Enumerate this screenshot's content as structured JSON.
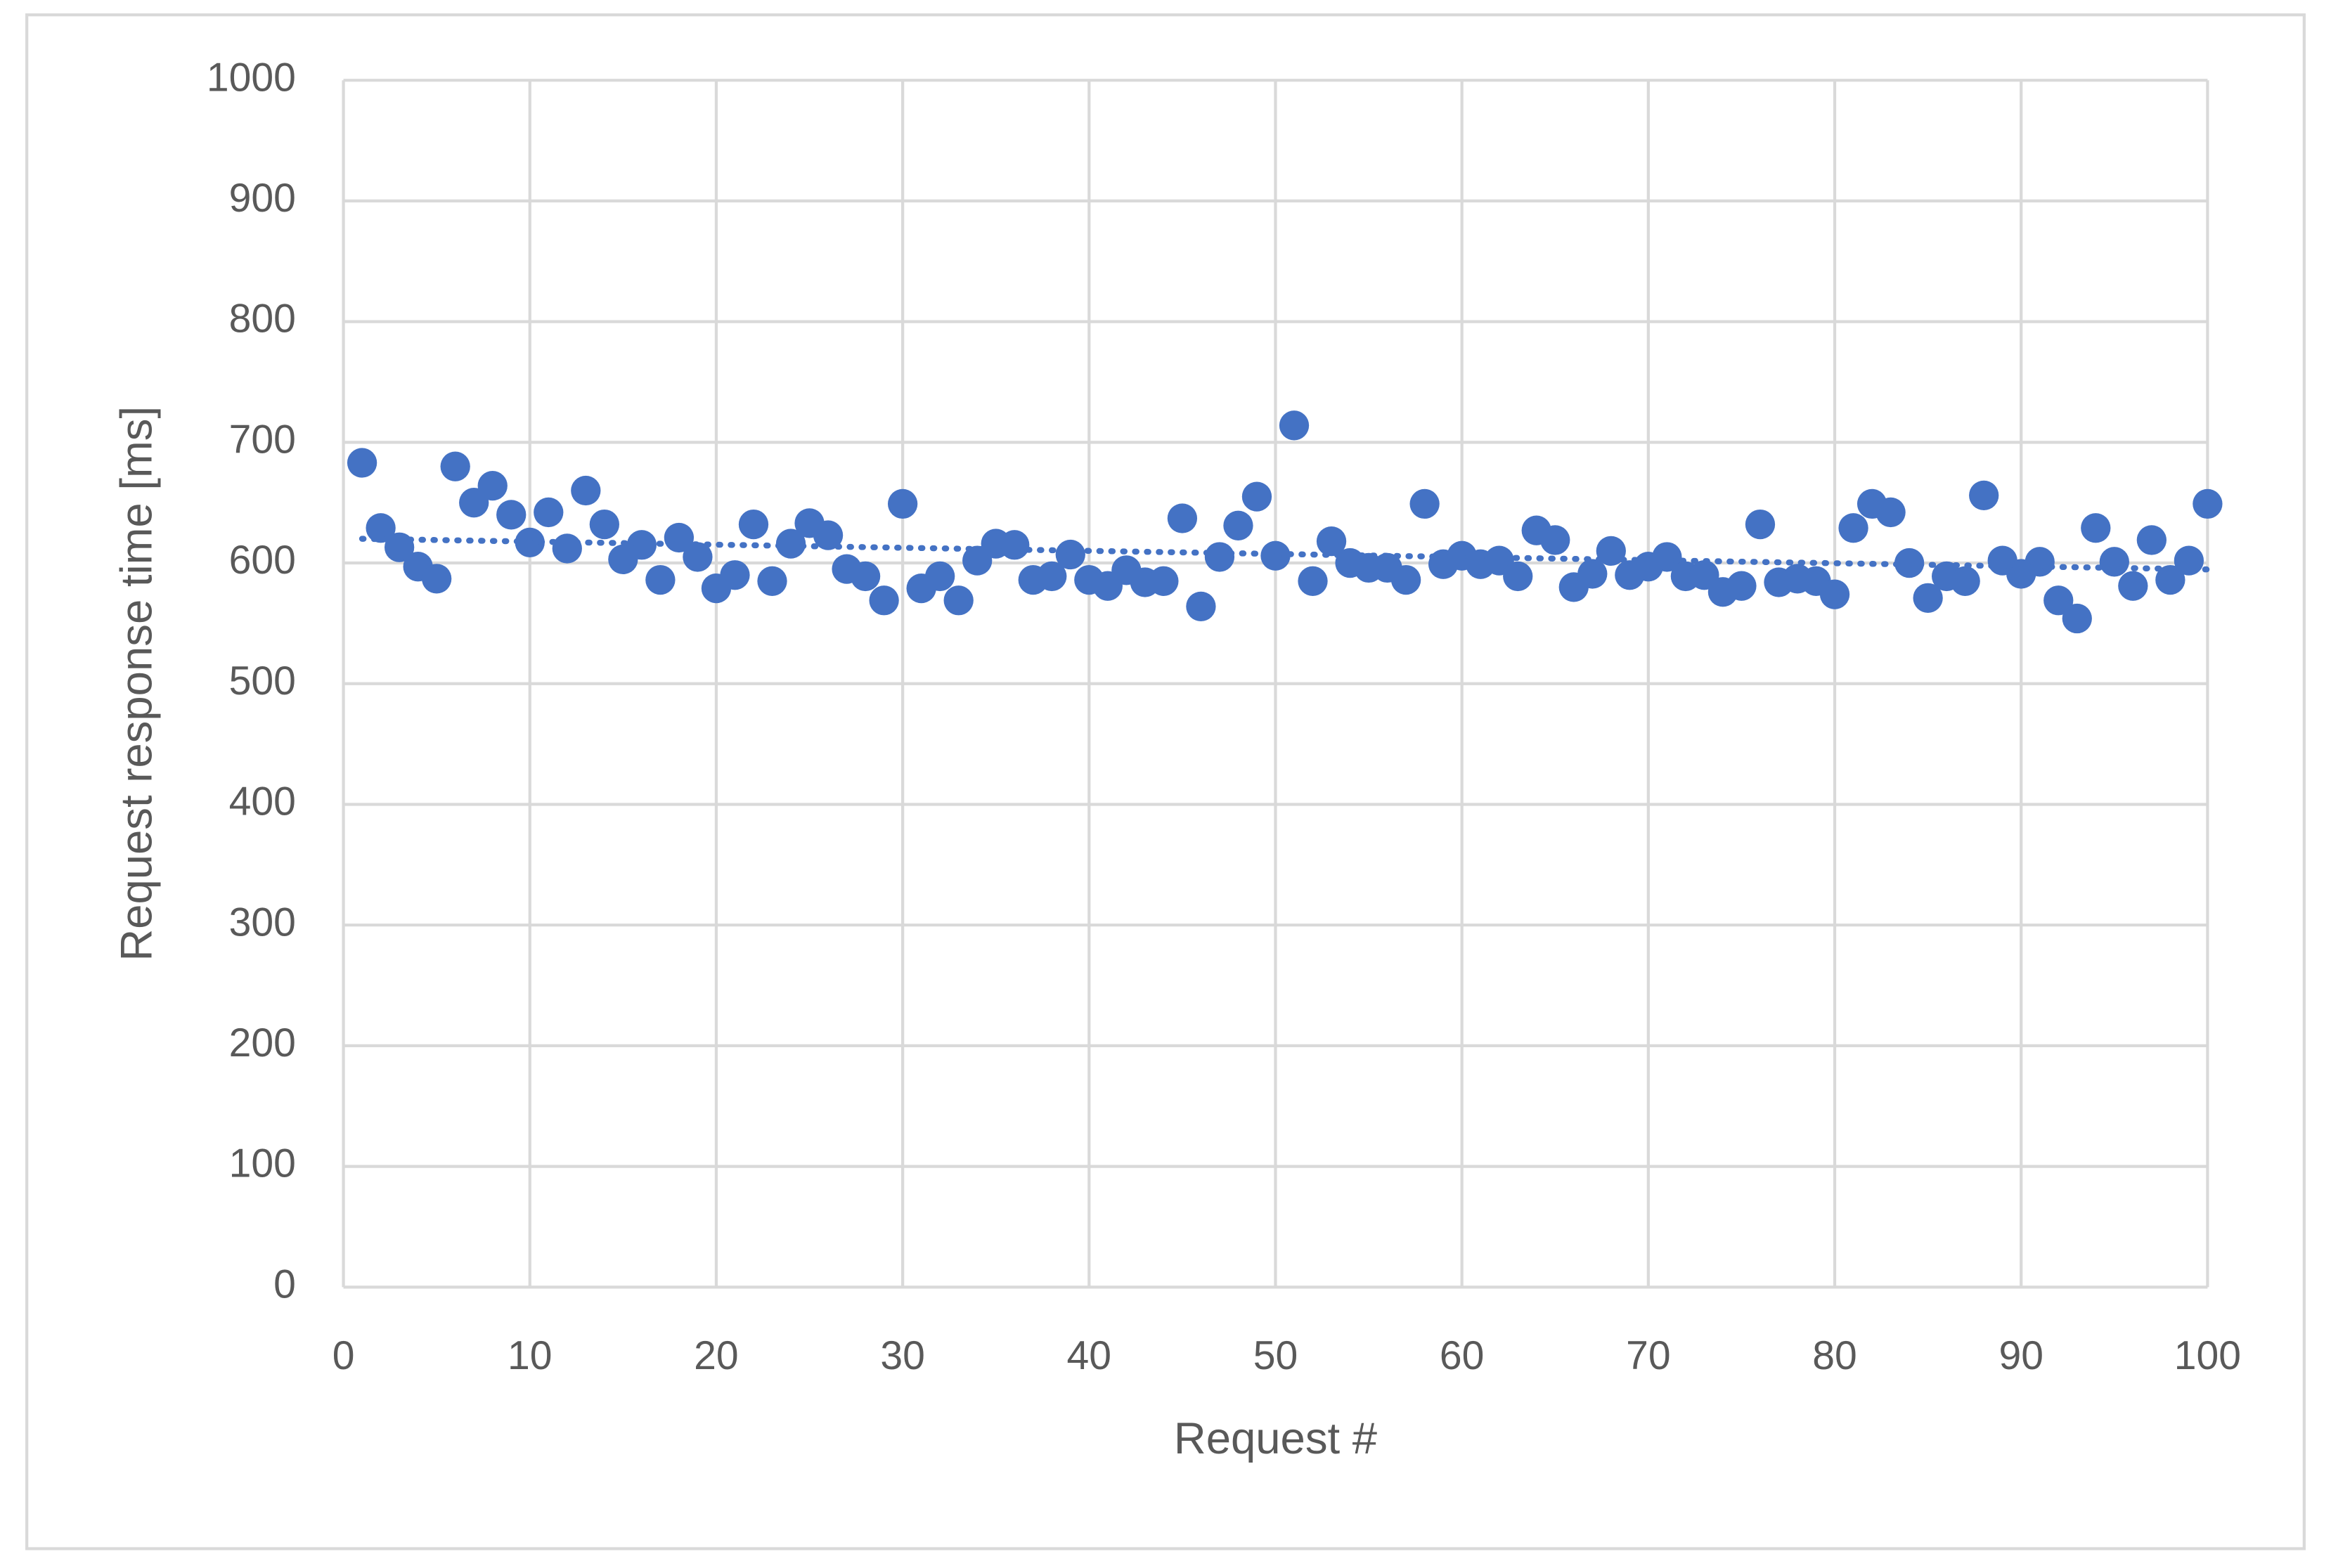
{
  "chart_data": {
    "type": "scatter",
    "x_label": "Request #",
    "y_label": "Request response time [ms]",
    "x": [
      1,
      2,
      3,
      4,
      5,
      6,
      7,
      8,
      9,
      10,
      11,
      12,
      13,
      14,
      15,
      16,
      17,
      18,
      19,
      20,
      21,
      22,
      23,
      24,
      25,
      26,
      27,
      28,
      29,
      30,
      31,
      32,
      33,
      34,
      35,
      36,
      37,
      38,
      39,
      40,
      41,
      42,
      43,
      44,
      45,
      46,
      47,
      48,
      49,
      50,
      51,
      52,
      53,
      54,
      55,
      56,
      57,
      58,
      59,
      60,
      61,
      62,
      63,
      64,
      65,
      66,
      67,
      68,
      69,
      70,
      71,
      72,
      73,
      74,
      75,
      76,
      77,
      78,
      79,
      80,
      81,
      82,
      83,
      84,
      85,
      86,
      87,
      88,
      89,
      90,
      91,
      92,
      93,
      94,
      95,
      96,
      97,
      98,
      99,
      100
    ],
    "values": [
      683,
      629,
      613,
      597,
      587,
      680,
      650,
      664,
      640,
      617,
      642,
      612,
      660,
      632,
      603,
      615,
      586,
      621,
      605,
      579,
      590,
      632,
      585,
      616,
      633,
      623,
      595,
      589,
      569,
      649,
      579,
      589,
      569,
      602,
      616,
      615,
      586,
      589,
      607,
      586,
      581,
      594,
      584,
      585,
      637,
      564,
      605,
      631,
      655,
      606,
      714,
      585,
      618,
      600,
      596,
      596,
      586,
      649,
      599,
      606,
      599,
      602,
      589,
      627,
      619,
      580,
      591,
      610,
      590,
      597,
      605,
      589,
      590,
      576,
      581,
      632,
      584,
      587,
      585,
      574,
      629,
      649,
      642,
      600,
      571,
      589,
      585,
      656,
      602,
      591,
      601,
      569,
      554,
      629,
      601,
      581,
      619,
      586,
      602,
      649
    ],
    "color": "#4472c4",
    "trendline": "linear",
    "xlim": [
      0,
      100
    ],
    "xticks": [
      0,
      10,
      20,
      30,
      40,
      50,
      60,
      70,
      80,
      90,
      100
    ],
    "ylim": [
      0,
      1000
    ],
    "yticks": [
      0,
      100,
      200,
      300,
      400,
      500,
      600,
      700,
      800,
      900,
      1000
    ],
    "grid": true
  }
}
